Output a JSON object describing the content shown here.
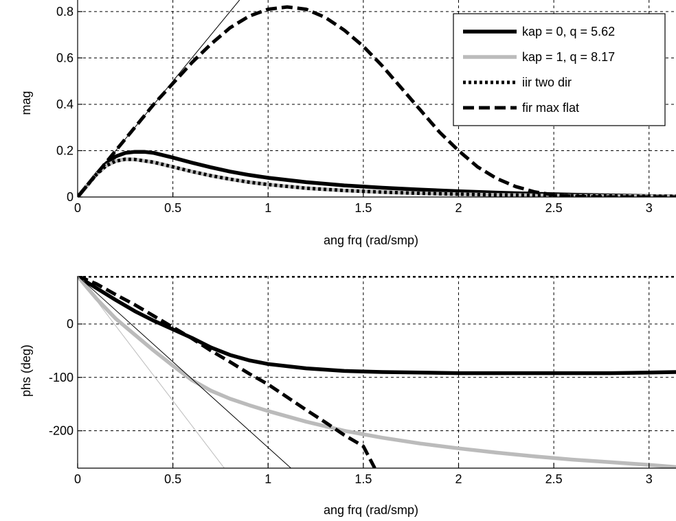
{
  "chart_data": [
    {
      "type": "line",
      "xlabel": "ang frq (rad/smp)",
      "ylabel": "mag",
      "xlim": [
        0,
        3.14159
      ],
      "ylim": [
        0,
        0.85
      ],
      "xticks": [
        0,
        0.5,
        1,
        1.5,
        2,
        2.5,
        3
      ],
      "xtick_labels": [
        "0",
        "0.5",
        "1",
        "1.5",
        "2",
        "2.5",
        "3"
      ],
      "yticks": [
        0,
        0.2,
        0.4,
        0.6,
        0.8
      ],
      "ytick_labels": [
        "0",
        "0.2",
        "0.4",
        "0.6",
        "0.8"
      ],
      "grid": true,
      "legend_position": "top-right",
      "legend": [
        {
          "label": "kap = 0, q = 5.62",
          "color": "#000000",
          "style": "solid-thick"
        },
        {
          "label": "kap = 1, q = 8.17",
          "color": "#bbbbbb",
          "style": "solid-thick"
        },
        {
          "label": "iir two dir",
          "color": "#000000",
          "style": "dotted"
        },
        {
          "label": "fir max flat",
          "color": "#000000",
          "style": "dashed"
        }
      ],
      "series": [
        {
          "color": "#000000",
          "style": "solid-thick",
          "x": [
            0,
            0.05,
            0.1,
            0.15,
            0.2,
            0.25,
            0.3,
            0.35,
            0.4,
            0.5,
            0.6,
            0.7,
            0.8,
            0.9,
            1.0,
            1.2,
            1.4,
            1.6,
            1.8,
            2.0,
            2.2,
            2.4,
            2.6,
            2.8,
            3.0,
            3.14159
          ],
          "y": [
            0,
            0.05,
            0.1,
            0.145,
            0.175,
            0.19,
            0.195,
            0.195,
            0.19,
            0.17,
            0.148,
            0.128,
            0.11,
            0.095,
            0.083,
            0.064,
            0.05,
            0.04,
            0.032,
            0.025,
            0.019,
            0.014,
            0.01,
            0.007,
            0.004,
            0.003
          ]
        },
        {
          "color": "#bbbbbb",
          "style": "solid-thick",
          "x": [
            0,
            0.05,
            0.1,
            0.15,
            0.2,
            0.25,
            0.3,
            0.4,
            0.5,
            0.6,
            0.7,
            0.8,
            0.9,
            1.0,
            1.2,
            1.4,
            1.6,
            1.8,
            2.0,
            2.2,
            2.4,
            2.6,
            2.8,
            3.0,
            3.14159
          ],
          "y": [
            0,
            0.05,
            0.098,
            0.135,
            0.155,
            0.163,
            0.162,
            0.15,
            0.13,
            0.11,
            0.092,
            0.077,
            0.064,
            0.054,
            0.038,
            0.028,
            0.021,
            0.016,
            0.012,
            0.009,
            0.007,
            0.005,
            0.004,
            0.003,
            0.003
          ]
        },
        {
          "color": "#000000",
          "style": "dotted",
          "x": [
            0,
            0.05,
            0.1,
            0.15,
            0.2,
            0.25,
            0.3,
            0.4,
            0.5,
            0.6,
            0.7,
            0.8,
            0.9,
            1.0,
            1.2,
            1.4,
            1.6,
            1.8,
            2.0,
            2.2,
            2.4,
            2.6,
            2.8,
            3.0,
            3.14159
          ],
          "y": [
            0,
            0.05,
            0.098,
            0.135,
            0.155,
            0.163,
            0.162,
            0.15,
            0.13,
            0.11,
            0.092,
            0.077,
            0.064,
            0.054,
            0.038,
            0.028,
            0.021,
            0.016,
            0.012,
            0.009,
            0.007,
            0.005,
            0.004,
            0.003,
            0.003
          ]
        },
        {
          "color": "#000000",
          "style": "dashed",
          "x": [
            0,
            0.1,
            0.2,
            0.3,
            0.4,
            0.5,
            0.6,
            0.7,
            0.8,
            0.9,
            1.0,
            1.1,
            1.2,
            1.3,
            1.4,
            1.5,
            1.6,
            1.7,
            1.8,
            1.9,
            2.0,
            2.1,
            2.2,
            2.3,
            2.4,
            2.5,
            2.6,
            2.7,
            2.8,
            3.0,
            3.14159
          ],
          "y": [
            0,
            0.1,
            0.2,
            0.3,
            0.4,
            0.49,
            0.58,
            0.66,
            0.73,
            0.78,
            0.81,
            0.82,
            0.81,
            0.775,
            0.72,
            0.65,
            0.565,
            0.47,
            0.375,
            0.28,
            0.2,
            0.13,
            0.08,
            0.045,
            0.022,
            0.009,
            0.003,
            0.001,
            0,
            0,
            0
          ]
        },
        {
          "color": "#000000",
          "style": "thin",
          "x": [
            0,
            0.85
          ],
          "y": [
            0,
            0.85
          ]
        }
      ]
    },
    {
      "type": "line",
      "xlabel": "ang frq (rad/smp)",
      "ylabel": "phs (deg)",
      "xlim": [
        0,
        3.14159
      ],
      "ylim": [
        -270,
        90
      ],
      "xticks": [
        0,
        0.5,
        1,
        1.5,
        2,
        2.5,
        3
      ],
      "xtick_labels": [
        "0",
        "0.5",
        "1",
        "1.5",
        "2",
        "2.5",
        "3"
      ],
      "yticks": [
        -200,
        -100,
        0
      ],
      "ytick_labels": [
        "-200",
        "-100",
        "0"
      ],
      "grid": true,
      "series": [
        {
          "color": "#000000",
          "style": "solid-thick",
          "x": [
            0,
            0.05,
            0.1,
            0.2,
            0.3,
            0.4,
            0.5,
            0.6,
            0.7,
            0.8,
            0.9,
            1.0,
            1.2,
            1.4,
            1.6,
            1.8,
            2.0,
            2.2,
            2.4,
            2.6,
            2.8,
            3.0,
            3.14159
          ],
          "y": [
            90,
            78,
            67,
            45,
            24,
            6,
            -10,
            -26,
            -44,
            -58,
            -68,
            -75,
            -83,
            -88,
            -90,
            -91,
            -92,
            -92,
            -92,
            -92,
            -92,
            -91,
            -90
          ]
        },
        {
          "color": "#bbbbbb",
          "style": "solid-thick",
          "x": [
            0,
            0.05,
            0.1,
            0.2,
            0.3,
            0.4,
            0.5,
            0.6,
            0.7,
            0.8,
            0.9,
            1.0,
            1.2,
            1.4,
            1.6,
            1.8,
            2.0,
            2.2,
            2.4,
            2.6,
            2.8,
            3.0,
            3.14159
          ],
          "y": [
            90,
            68,
            47,
            10,
            -20,
            -50,
            -78,
            -105,
            -125,
            -140,
            -152,
            -163,
            -183,
            -200,
            -213,
            -224,
            -233,
            -241,
            -248,
            -254,
            -259,
            -264,
            -268
          ]
        },
        {
          "color": "#000000",
          "style": "dotted",
          "x": [
            0,
            3.14159
          ],
          "y": [
            90,
            90
          ]
        },
        {
          "color": "#000000",
          "style": "dashed",
          "x": [
            0,
            0.1,
            0.2,
            0.3,
            0.4,
            0.5,
            0.6,
            0.7,
            0.8,
            0.9,
            1.0,
            1.1,
            1.2,
            1.3,
            1.4,
            1.5,
            1.56
          ],
          "y": [
            90,
            75,
            55,
            36,
            15,
            -6,
            -27,
            -50,
            -71,
            -93,
            -113,
            -137,
            -161,
            -184,
            -208,
            -229,
            -270
          ]
        },
        {
          "color": "#000000",
          "style": "thin",
          "x": [
            0,
            1.12
          ],
          "y": [
            90,
            -270
          ]
        },
        {
          "color": "#bbbbbb",
          "style": "thin",
          "x": [
            0,
            0.77
          ],
          "y": [
            90,
            -270
          ]
        }
      ]
    }
  ]
}
